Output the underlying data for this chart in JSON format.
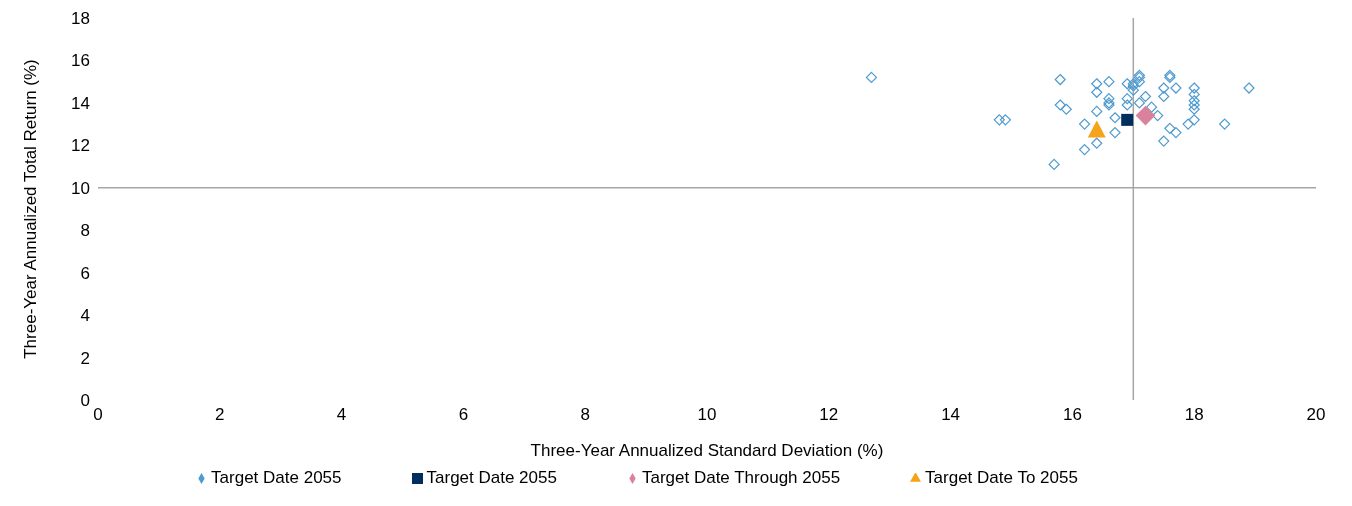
{
  "chart_data": {
    "type": "scatter",
    "xlabel": "Three-Year Annualized Standard Deviation (%)",
    "ylabel": "Three-Year Annualized Total Return (%)",
    "xlim": [
      0,
      20
    ],
    "xticks": [
      0,
      2,
      4,
      6,
      8,
      10,
      12,
      14,
      16,
      18,
      20
    ],
    "ylim": [
      0,
      18
    ],
    "yticks": [
      0,
      2,
      4,
      6,
      8,
      10,
      12,
      14,
      16,
      18
    ],
    "grid": false,
    "legend": "bottom",
    "ref_lines": [
      {
        "axis": "x",
        "value": 17,
        "color": "#a6a6a6"
      },
      {
        "axis": "y",
        "value": 10,
        "color": "#a6a6a6"
      }
    ],
    "series": [
      {
        "name": "Target Date 2055",
        "color": "#4f9bd0",
        "marker": "diamond",
        "x": [
          12.7,
          15.8,
          16.4,
          16.6,
          16.4,
          15.8,
          15.9,
          16.6,
          16.6,
          16.6,
          16.4,
          16.9,
          16.7,
          14.8,
          14.9,
          16.2,
          16.7,
          16.4,
          16.2,
          15.7,
          16.9,
          17.0,
          17.1,
          17.1,
          17.0,
          17.0,
          17.1,
          16.9,
          17.2,
          17.1,
          17.3,
          17.4,
          17.6,
          17.6,
          17.7,
          17.5,
          17.5,
          18.0,
          18.0,
          18.0,
          18.0,
          18.0,
          17.9,
          18.0,
          17.6,
          17.7,
          17.5,
          18.5,
          18.9
        ],
        "values": [
          15.2,
          15.1,
          14.9,
          15.0,
          14.5,
          13.9,
          13.7,
          14.2,
          14.0,
          13.9,
          13.6,
          13.9,
          13.3,
          13.2,
          13.2,
          13.0,
          12.6,
          12.1,
          11.8,
          11.1,
          14.9,
          14.8,
          15.3,
          15.2,
          14.9,
          14.6,
          15.0,
          14.2,
          14.3,
          14.0,
          13.8,
          13.4,
          15.3,
          15.2,
          14.7,
          14.7,
          14.3,
          14.7,
          14.4,
          14.1,
          13.9,
          13.7,
          13.0,
          13.2,
          12.8,
          12.6,
          12.2,
          13.0,
          14.7
        ]
      },
      {
        "name": "Target Date 2055",
        "color": "#002e5d",
        "marker": "square",
        "x": [
          16.9
        ],
        "values": [
          13.2
        ]
      },
      {
        "name": "Target Date Through 2055",
        "color": "#d9819d",
        "marker": "diamond",
        "x": [
          17.2
        ],
        "values": [
          13.4
        ]
      },
      {
        "name": "Target Date To 2055",
        "color": "#f5a31a",
        "marker": "triangle",
        "x": [
          16.4
        ],
        "values": [
          12.7
        ]
      }
    ]
  }
}
